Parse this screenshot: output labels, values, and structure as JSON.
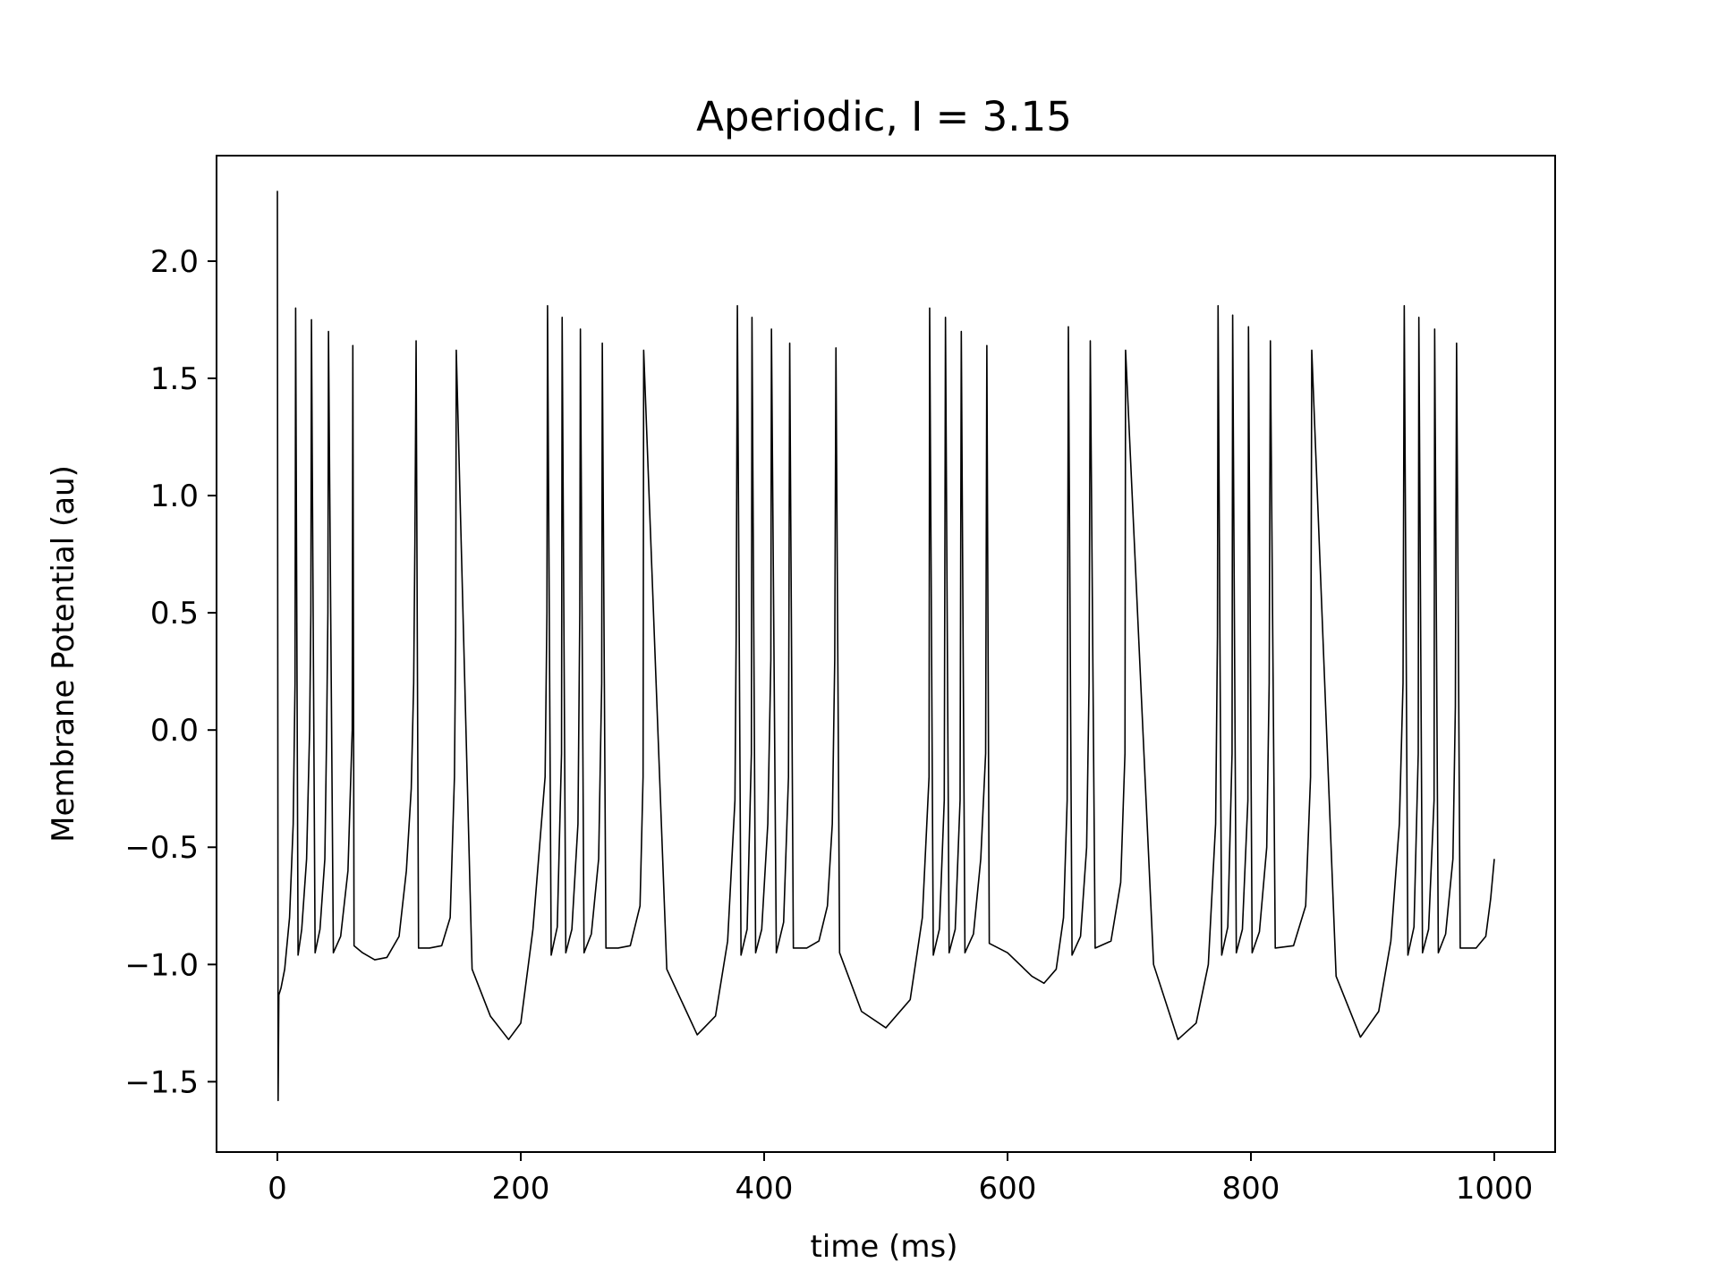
{
  "chart_data": {
    "type": "line",
    "title": "Aperiodic, I = 3.15",
    "xlabel": "time (ms)",
    "ylabel": "Membrane Potential (au)",
    "xlim": [
      -50,
      1050
    ],
    "ylim": [
      -1.8,
      2.45
    ],
    "xticks": [
      0,
      200,
      400,
      600,
      800,
      1000
    ],
    "xtick_labels": [
      "0",
      "200",
      "400",
      "600",
      "800",
      "1000"
    ],
    "yticks": [
      -1.5,
      -1.0,
      -0.5,
      0.0,
      0.5,
      1.0,
      1.5,
      2.0
    ],
    "ytick_labels": [
      "−1.5",
      "−1.0",
      "−0.5",
      "0.0",
      "0.5",
      "1.0",
      "1.5",
      "2.0"
    ],
    "grid": false,
    "line_color": "#000000",
    "series": [
      {
        "x": [
          0,
          0.6,
          1.2,
          3,
          6,
          10,
          13,
          14.5,
          15,
          17,
          20,
          24,
          26.5,
          27.5,
          28,
          31,
          35,
          39,
          40.5,
          41.5,
          42,
          46,
          52,
          58,
          61.5,
          62,
          63,
          70,
          80,
          90,
          100,
          106,
          110,
          112,
          113,
          114,
          116,
          125,
          135,
          142,
          145.5,
          146.5,
          147,
          160,
          175,
          190,
          200,
          210,
          220,
          221.5,
          222,
          225,
          230,
          233.5,
          234,
          237,
          242,
          247,
          248.5,
          249,
          252,
          258,
          264,
          266.5,
          267,
          270,
          280,
          290,
          298,
          300.5,
          301,
          320,
          345,
          360,
          370,
          376,
          377,
          378,
          381,
          386,
          389.5,
          390,
          393,
          398,
          403,
          405.5,
          406,
          410,
          416,
          420,
          421,
          424,
          435,
          445,
          452,
          456,
          458,
          459,
          462,
          480,
          500,
          520,
          530,
          535.5,
          536,
          539,
          544,
          548,
          549,
          552,
          557,
          561,
          562,
          565,
          572,
          578,
          582,
          583,
          585,
          600,
          620,
          630,
          640,
          646,
          649,
          650,
          653,
          660,
          665,
          667,
          668,
          672,
          685,
          693,
          696.5,
          697,
          720,
          740,
          755,
          765,
          771,
          772.5,
          773,
          776,
          781,
          784.5,
          785,
          788,
          793,
          797.5,
          798,
          801,
          807,
          813,
          815,
          816,
          820,
          835,
          845,
          849,
          850,
          870,
          890,
          905,
          915,
          922,
          925,
          926,
          929,
          934,
          937.5,
          938,
          941,
          946,
          950.5,
          951,
          954,
          960,
          966,
          968,
          969,
          972,
          985,
          993,
          997,
          1000
        ],
        "y": [
          2.3,
          -1.58,
          -1.13,
          -1.1,
          -1.02,
          -0.8,
          -0.4,
          0.2,
          1.8,
          -0.96,
          -0.85,
          -0.55,
          0.0,
          0.5,
          1.75,
          -0.95,
          -0.85,
          -0.55,
          0.0,
          0.5,
          1.7,
          -0.95,
          -0.88,
          -0.6,
          0.0,
          1.64,
          -0.92,
          -0.95,
          -0.98,
          -0.97,
          -0.88,
          -0.6,
          -0.25,
          0.2,
          0.8,
          1.66,
          -0.93,
          -0.93,
          -0.92,
          -0.8,
          -0.2,
          0.4,
          1.62,
          -1.02,
          -1.22,
          -1.32,
          -1.25,
          -0.85,
          -0.2,
          0.5,
          1.81,
          -0.96,
          -0.84,
          -0.1,
          1.76,
          -0.95,
          -0.85,
          -0.4,
          0.5,
          1.71,
          -0.95,
          -0.87,
          -0.55,
          0.2,
          1.65,
          -0.93,
          -0.93,
          -0.92,
          -0.75,
          -0.2,
          1.62,
          -1.02,
          -1.3,
          -1.22,
          -0.9,
          -0.3,
          0.4,
          1.81,
          -0.96,
          -0.85,
          -0.1,
          1.76,
          -0.95,
          -0.85,
          -0.4,
          0.3,
          1.71,
          -0.95,
          -0.82,
          -0.2,
          1.65,
          -0.93,
          -0.93,
          -0.9,
          -0.75,
          -0.4,
          0.3,
          1.63,
          -0.95,
          -1.2,
          -1.27,
          -1.15,
          -0.8,
          -0.2,
          1.8,
          -0.96,
          -0.85,
          -0.3,
          1.76,
          -0.95,
          -0.85,
          -0.3,
          1.7,
          -0.95,
          -0.87,
          -0.55,
          -0.1,
          1.64,
          -0.91,
          -0.95,
          -1.05,
          -1.08,
          -1.02,
          -0.8,
          -0.3,
          1.72,
          -0.96,
          -0.88,
          -0.5,
          0.2,
          1.66,
          -0.93,
          -0.9,
          -0.65,
          -0.1,
          1.62,
          -1.0,
          -1.32,
          -1.25,
          -1.0,
          -0.4,
          0.4,
          1.81,
          -0.96,
          -0.84,
          -0.1,
          1.77,
          -0.95,
          -0.85,
          -0.3,
          1.72,
          -0.95,
          -0.86,
          -0.5,
          0.2,
          1.66,
          -0.93,
          -0.92,
          -0.75,
          -0.2,
          1.62,
          -1.05,
          -1.31,
          -1.2,
          -0.9,
          -0.4,
          0.2,
          1.81,
          -0.96,
          -0.84,
          -0.1,
          1.76,
          -0.95,
          -0.85,
          -0.3,
          1.71,
          -0.95,
          -0.87,
          -0.55,
          0.1,
          1.65,
          -0.93,
          -0.93,
          -0.88,
          -0.72,
          -0.55
        ]
      }
    ]
  }
}
